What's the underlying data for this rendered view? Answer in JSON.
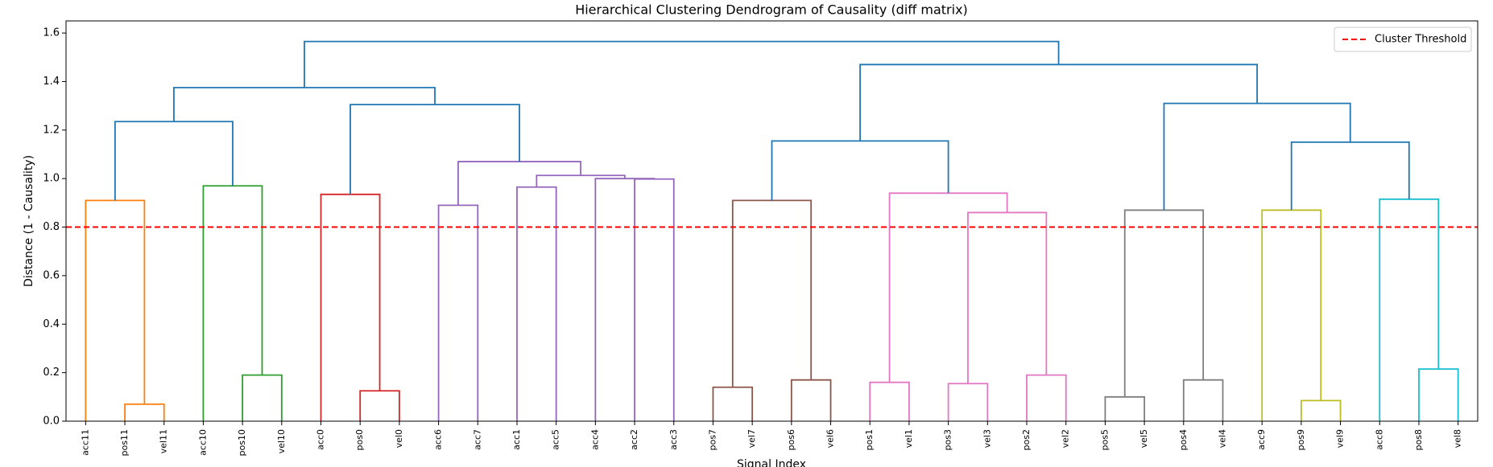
{
  "chart_data": {
    "type": "dendrogram",
    "title": "Hierarchical Clustering Dendrogram of Causality (diff matrix)",
    "xlabel": "Signal Index",
    "ylabel": "Distance (1 - Causality)",
    "leaves": [
      "acc11",
      "pos11",
      "vel11",
      "acc10",
      "pos10",
      "vel10",
      "acc0",
      "pos0",
      "vel0",
      "acc6",
      "acc7",
      "acc1",
      "acc5",
      "acc4",
      "acc2",
      "acc3",
      "pos7",
      "vel7",
      "pos6",
      "vel6",
      "pos1",
      "vel1",
      "pos3",
      "vel3",
      "pos2",
      "vel2",
      "pos5",
      "vel5",
      "pos4",
      "vel4",
      "acc9",
      "pos9",
      "vel9",
      "acc8",
      "pos8",
      "vel8"
    ],
    "merges": [
      {
        "children": [
          1,
          2
        ],
        "height": 0.07,
        "color": "#ff7f0e"
      },
      {
        "children": [
          0,
          36
        ],
        "height": 0.91,
        "color": "#ff7f0e"
      },
      {
        "children": [
          4,
          5
        ],
        "height": 0.19,
        "color": "#2ca02c"
      },
      {
        "children": [
          3,
          38
        ],
        "height": 0.97,
        "color": "#2ca02c"
      },
      {
        "children": [
          7,
          8
        ],
        "height": 0.125,
        "color": "#d62728"
      },
      {
        "children": [
          6,
          40
        ],
        "height": 0.935,
        "color": "#d62728"
      },
      {
        "children": [
          9,
          10
        ],
        "height": 0.89,
        "color": "#9467bd"
      },
      {
        "children": [
          11,
          12
        ],
        "height": 0.965,
        "color": "#9467bd"
      },
      {
        "children": [
          14,
          15
        ],
        "height": 0.998,
        "color": "#9467bd"
      },
      {
        "children": [
          13,
          44
        ],
        "height": 1.0,
        "color": "#9467bd"
      },
      {
        "children": [
          43,
          45
        ],
        "height": 1.013,
        "color": "#9467bd"
      },
      {
        "children": [
          42,
          46
        ],
        "height": 1.07,
        "color": "#9467bd"
      },
      {
        "children": [
          16,
          17
        ],
        "height": 0.14,
        "color": "#8c564b"
      },
      {
        "children": [
          18,
          19
        ],
        "height": 0.17,
        "color": "#8c564b"
      },
      {
        "children": [
          48,
          49
        ],
        "height": 0.91,
        "color": "#8c564b"
      },
      {
        "children": [
          20,
          21
        ],
        "height": 0.16,
        "color": "#e377c2"
      },
      {
        "children": [
          22,
          23
        ],
        "height": 0.155,
        "color": "#e377c2"
      },
      {
        "children": [
          24,
          25
        ],
        "height": 0.19,
        "color": "#e377c2"
      },
      {
        "children": [
          52,
          53
        ],
        "height": 0.86,
        "color": "#e377c2"
      },
      {
        "children": [
          51,
          54
        ],
        "height": 0.94,
        "color": "#e377c2"
      },
      {
        "children": [
          50,
          55
        ],
        "height": 1.155,
        "color": "#1f77b4"
      },
      {
        "children": [
          26,
          27
        ],
        "height": 0.1,
        "color": "#7f7f7f"
      },
      {
        "children": [
          28,
          29
        ],
        "height": 0.17,
        "color": "#7f7f7f"
      },
      {
        "children": [
          57,
          58
        ],
        "height": 0.87,
        "color": "#7f7f7f"
      },
      {
        "children": [
          31,
          32
        ],
        "height": 0.085,
        "color": "#bcbd22"
      },
      {
        "children": [
          30,
          60
        ],
        "height": 0.87,
        "color": "#bcbd22"
      },
      {
        "children": [
          34,
          35
        ],
        "height": 0.215,
        "color": "#17becf"
      },
      {
        "children": [
          33,
          62
        ],
        "height": 0.915,
        "color": "#17becf"
      },
      {
        "children": [
          61,
          63
        ],
        "height": 1.15,
        "color": "#1f77b4"
      },
      {
        "children": [
          59,
          64
        ],
        "height": 1.31,
        "color": "#1f77b4"
      },
      {
        "children": [
          56,
          65
        ],
        "height": 1.47,
        "color": "#1f77b4"
      },
      {
        "children": [
          37,
          39
        ],
        "height": 1.235,
        "color": "#1f77b4"
      },
      {
        "children": [
          41,
          47
        ],
        "height": 1.305,
        "color": "#1f77b4"
      },
      {
        "children": [
          67,
          68
        ],
        "height": 1.375,
        "color": "#1f77b4"
      },
      {
        "children": [
          69,
          66
        ],
        "height": 1.565,
        "color": "#1f77b4"
      }
    ],
    "threshold": {
      "name": "Cluster Threshold",
      "value": 0.8,
      "color": "#ff0000"
    },
    "legend": "upper right",
    "ylim": [
      0,
      1.65
    ],
    "yticks": [
      {
        "value": 0,
        "label": "0.0"
      },
      {
        "value": 0.2,
        "label": "0.2"
      },
      {
        "value": 0.4,
        "label": "0.4"
      },
      {
        "value": 0.6,
        "label": "0.6"
      },
      {
        "value": 0.8,
        "label": "0.8"
      },
      {
        "value": 1.0,
        "label": "1.0"
      },
      {
        "value": 1.2,
        "label": "1.2"
      },
      {
        "value": 1.4,
        "label": "1.4"
      },
      {
        "value": 1.6,
        "label": "1.6"
      }
    ]
  }
}
